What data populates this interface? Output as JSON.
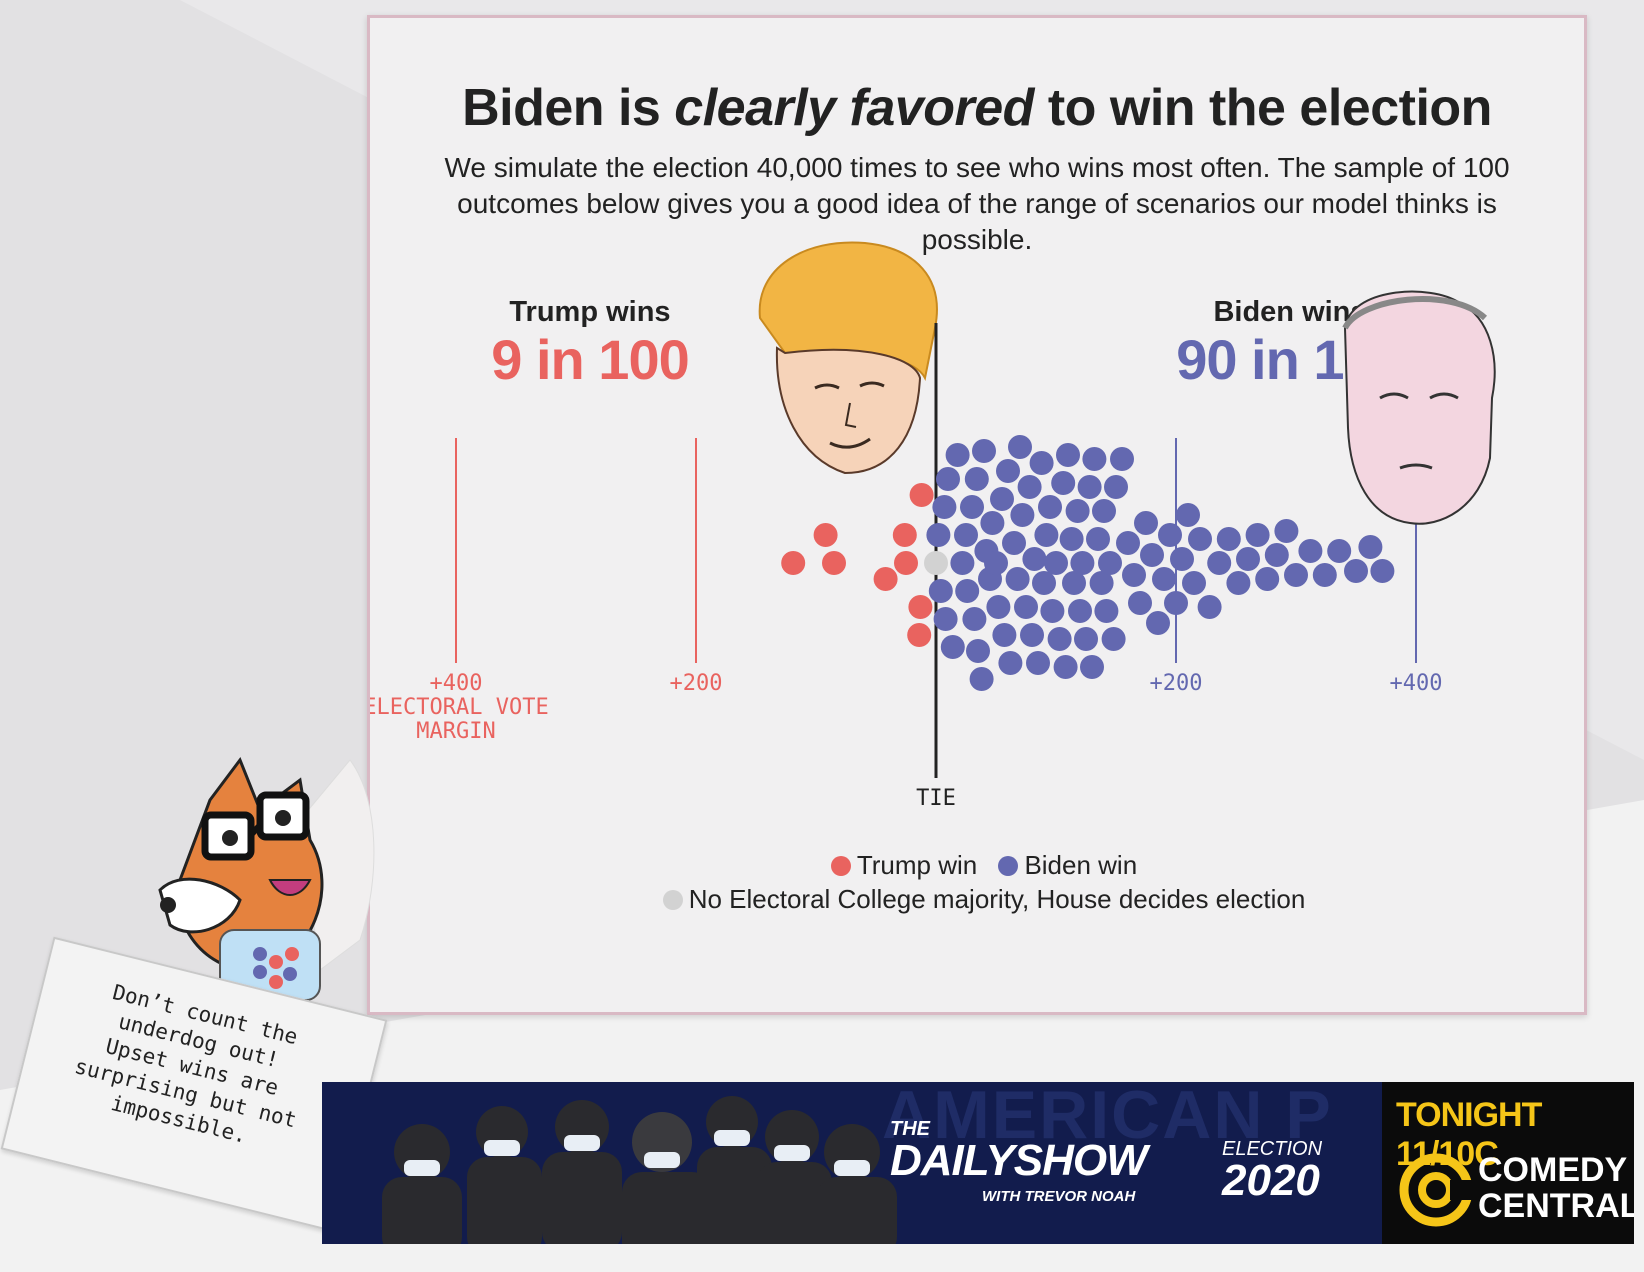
{
  "card": {
    "title_pre": "Biden is ",
    "title_em": "clearly favored",
    "title_post": " to win the election",
    "subtitle": "We simulate the election 40,000 times to see who wins most often. The sample of 100 outcomes below gives you a good idea of the range of scenarios our model thinks is possible."
  },
  "trump": {
    "label": "Trump wins",
    "odds": "9 in 100"
  },
  "biden": {
    "label": "Biden wins",
    "odds": "90 in 100"
  },
  "colors": {
    "trump": "#e9635f",
    "biden": "#6368b0",
    "house": "#d2d2d2",
    "tie_line": "#222222"
  },
  "chart_data": {
    "type": "scatter",
    "title": "Biden is clearly favored to win the election",
    "xlabel": "ELECTORAL VOTE MARGIN",
    "x_range": [
      -450,
      450
    ],
    "ticks": [
      {
        "value": -400,
        "label": "+400",
        "side": "trump"
      },
      {
        "value": -200,
        "label": "+200",
        "side": "trump"
      },
      {
        "value": 0,
        "label": "TIE",
        "side": "tie"
      },
      {
        "value": 200,
        "label": "+200",
        "side": "biden"
      },
      {
        "value": 400,
        "label": "+400",
        "side": "biden"
      }
    ],
    "series": [
      {
        "name": "Trump win",
        "count": 9,
        "margins": [
          -119,
          -92,
          -85,
          -42,
          -26,
          -25,
          -14,
          -13,
          -12
        ]
      },
      {
        "name": "No Electoral College majority, House decides election",
        "count": 1,
        "margins": [
          0
        ]
      },
      {
        "name": "Biden win",
        "count": 90,
        "margins": [
          2,
          4,
          7,
          8,
          10,
          14,
          18,
          22,
          25,
          26,
          30,
          32,
          34,
          35,
          38,
          40,
          42,
          45,
          47,
          50,
          52,
          55,
          57,
          60,
          62,
          65,
          68,
          70,
          72,
          75,
          78,
          80,
          82,
          85,
          88,
          90,
          92,
          95,
          97,
          100,
          103,
          106,
          108,
          110,
          113,
          115,
          118,
          120,
          122,
          125,
          128,
          130,
          132,
          135,
          138,
          140,
          142,
          145,
          148,
          150,
          155,
          160,
          165,
          170,
          175,
          180,
          185,
          190,
          195,
          200,
          205,
          210,
          215,
          220,
          228,
          236,
          244,
          252,
          260,
          268,
          276,
          284,
          292,
          300,
          312,
          324,
          336,
          350,
          362,
          372
        ]
      }
    ],
    "legend": [
      "Trump win",
      "Biden win",
      "No Electoral College majority, House decides election"
    ]
  },
  "axis": {
    "axis_caption": "ELECTORAL VOTE MARGIN",
    "tie_label": "TIE"
  },
  "speech": {
    "text": "Don’t count the\nunderdog out!\nUpset wins are\nsurprising but not\nimpossible."
  },
  "ad": {
    "bg_text": "AMERICAN P",
    "the": "THE",
    "brand": "DAILYSHOW",
    "host": "WITH TREVOR NOAH",
    "election": "ELECTION",
    "year": "2020",
    "tonight": "TONIGHT 11/10C",
    "network1": "COMEDY",
    "network2": "CENTRAL"
  }
}
